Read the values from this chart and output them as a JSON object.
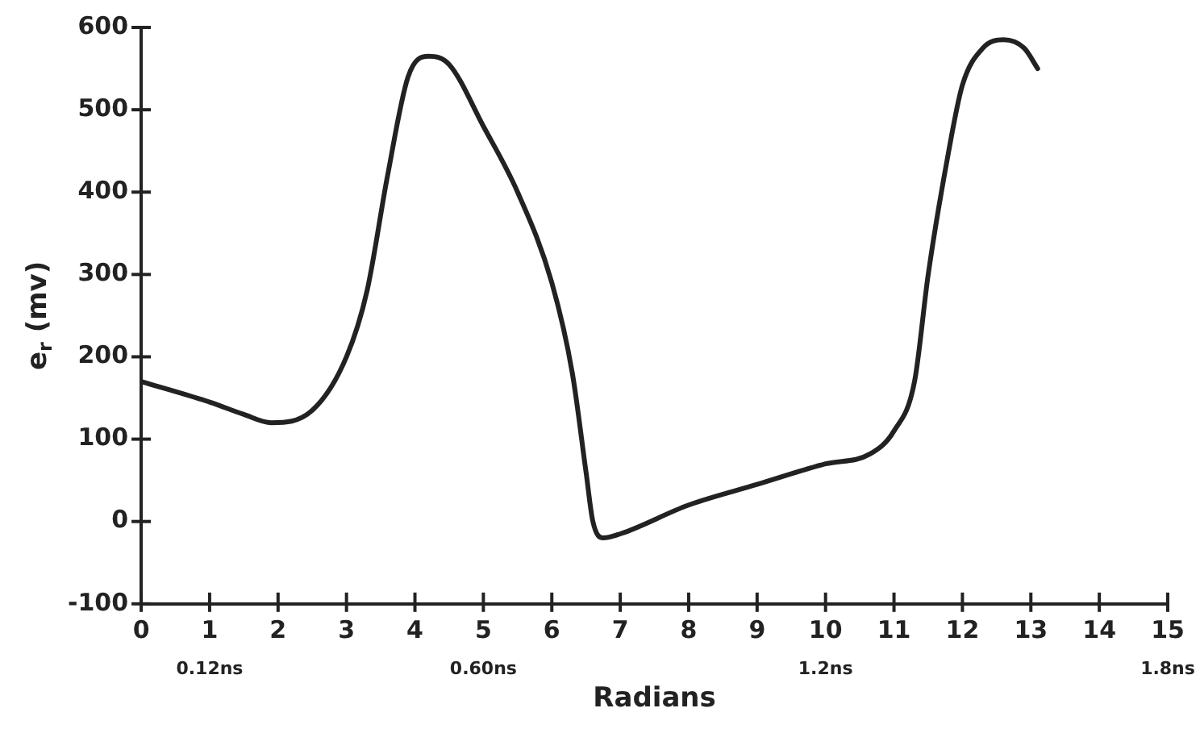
{
  "chart_data": {
    "type": "line",
    "xlabel": "Radians",
    "ylabel": "e$_{r}$ (mv)",
    "x": [
      0,
      1,
      1.5,
      1.9,
      2.5,
      3,
      3.3,
      3.6,
      3.9,
      4.2,
      4.5,
      5,
      5.5,
      6,
      6.3,
      6.5,
      6.6,
      6.75,
      7,
      8,
      9,
      10,
      10.65,
      11,
      11.3,
      11.5,
      11.8,
      12,
      12.3,
      12.6,
      12.9,
      13.1
    ],
    "series": [
      {
        "color": "#222222",
        "values": [
          170,
          145,
          130,
          120,
          135,
          200,
          280,
          420,
          540,
          565,
          555,
          480,
          400,
          290,
          180,
          60,
          0,
          -20,
          -15,
          20,
          45,
          70,
          82,
          110,
          170,
          300,
          450,
          530,
          575,
          585,
          575,
          550
        ]
      }
    ],
    "xlim": [
      0,
      15
    ],
    "xticks": [
      0,
      1,
      2,
      3,
      4,
      5,
      6,
      7,
      8,
      9,
      10,
      11,
      12,
      13,
      14,
      15
    ],
    "x2lim": [
      0,
      1.8
    ],
    "x2ticks": [
      {
        "value": 0.12,
        "label": "0.12ns"
      },
      {
        "value": 0.6,
        "label": "0.60ns"
      },
      {
        "value": 1.2,
        "label": "1.2ns"
      },
      {
        "value": 1.8,
        "label": "1.8ns"
      }
    ],
    "ylim": [
      -100,
      600
    ],
    "yticks": [
      -100,
      0,
      100,
      200,
      300,
      400,
      500,
      600
    ],
    "grid": false,
    "legend": false,
    "marker": "none",
    "line_style": "solid"
  }
}
